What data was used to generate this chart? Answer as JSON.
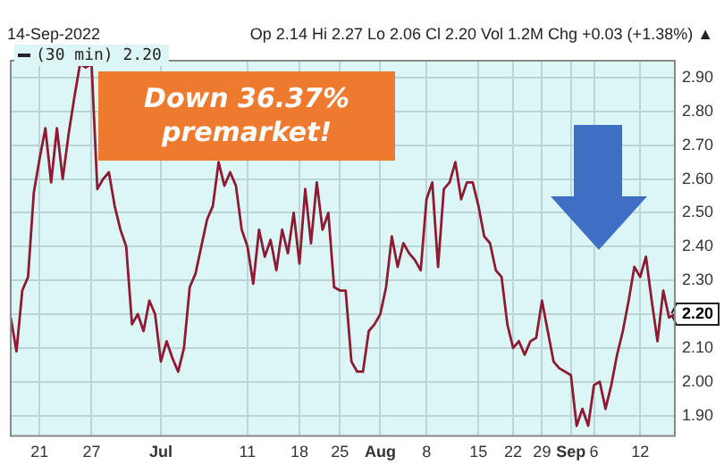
{
  "chart_data": {
    "type": "line",
    "title": "14-Sep-2022",
    "subtitle": "Op 2.14 Hi 2.27 Lo 2.06 Cl 2.20 Vol 1.2M Chg +0.03 (+1.38%) ▲",
    "categories": [
      null,
      null,
      null,
      null,
      null,
      "21",
      null,
      null,
      null,
      null,
      null,
      null,
      null,
      null,
      "27",
      null,
      null,
      null,
      null,
      null,
      null,
      null,
      null,
      null,
      null,
      null,
      "Jul",
      null,
      null,
      null,
      null,
      null,
      null,
      null,
      null,
      null,
      null,
      null,
      null,
      null,
      null,
      "11",
      null,
      null,
      null,
      null,
      null,
      null,
      null,
      null,
      "18",
      null,
      null,
      null,
      null,
      null,
      null,
      "25",
      null,
      null,
      null,
      null,
      null,
      null,
      "Aug",
      null,
      null,
      null,
      null,
      null,
      null,
      null,
      "8",
      null,
      null,
      null,
      null,
      null,
      null,
      null,
      null,
      "15",
      null,
      null,
      null,
      null,
      null,
      "22",
      null,
      null,
      null,
      null,
      "29",
      null,
      null,
      null,
      null,
      "Sep",
      null,
      null,
      null,
      "6",
      null,
      null,
      null,
      null,
      null,
      null,
      null,
      "12",
      null,
      null,
      null,
      null,
      null,
      null
    ],
    "series": [
      {
        "name": "(30 min) 2.20",
        "color": "#8e1b33",
        "values": [
          2.19,
          2.09,
          2.27,
          2.31,
          2.56,
          2.66,
          2.75,
          2.59,
          2.75,
          2.6,
          2.73,
          2.84,
          2.94,
          2.93,
          2.94,
          2.57,
          2.6,
          2.62,
          2.52,
          2.45,
          2.4,
          2.17,
          2.2,
          2.15,
          2.24,
          2.2,
          2.06,
          2.12,
          2.07,
          2.03,
          2.1,
          2.28,
          2.32,
          2.4,
          2.48,
          2.52,
          2.65,
          2.58,
          2.62,
          2.58,
          2.45,
          2.4,
          2.29,
          2.45,
          2.37,
          2.42,
          2.33,
          2.45,
          2.38,
          2.5,
          2.35,
          2.57,
          2.41,
          2.59,
          2.45,
          2.5,
          2.28,
          2.27,
          2.27,
          2.06,
          2.03,
          2.03,
          2.15,
          2.17,
          2.2,
          2.28,
          2.43,
          2.34,
          2.41,
          2.38,
          2.36,
          2.33,
          2.54,
          2.59,
          2.34,
          2.57,
          2.59,
          2.65,
          2.54,
          2.59,
          2.59,
          2.52,
          2.43,
          2.41,
          2.33,
          2.31,
          2.17,
          2.1,
          2.12,
          2.08,
          2.12,
          2.13,
          2.24,
          2.15,
          2.06,
          2.04,
          2.03,
          2.02,
          1.87,
          1.92,
          1.87,
          1.99,
          2.0,
          1.92,
          1.99,
          2.08,
          2.15,
          2.24,
          2.34,
          2.31,
          2.37,
          2.24,
          2.12,
          2.27,
          2.19,
          2.2
        ]
      }
    ],
    "ylim": [
      1.84,
      2.95
    ],
    "yticks": [
      {
        "value": 1.9,
        "label": "1.90"
      },
      {
        "value": 2.0,
        "label": "2.00"
      },
      {
        "value": 2.1,
        "label": "2.10"
      },
      {
        "value": 2.2,
        "label": "2.20"
      },
      {
        "value": 2.3,
        "label": "2.30"
      },
      {
        "value": 2.4,
        "label": "2.40"
      },
      {
        "value": 2.5,
        "label": "2.50"
      },
      {
        "value": 2.6,
        "label": "2.60"
      },
      {
        "value": 2.7,
        "label": "2.70"
      },
      {
        "value": 2.8,
        "label": "2.80"
      },
      {
        "value": 2.9,
        "label": "2.90"
      }
    ],
    "grid": true,
    "legend": "top left",
    "marker": "none",
    "line_style": "solid",
    "annotations": [
      "Down 36.37% premarket!"
    ]
  }
}
